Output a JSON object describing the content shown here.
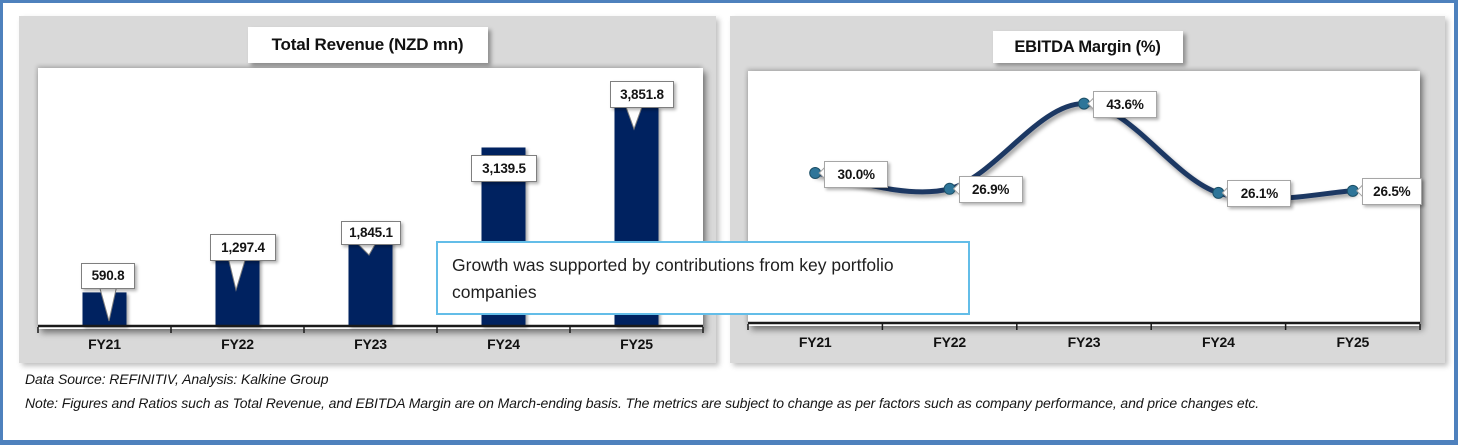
{
  "page": {
    "border_color": "#4E81BD",
    "background_color": "#FFFFFF",
    "panel_color": "#D9D9D9"
  },
  "chart_data": [
    {
      "type": "bar",
      "title": "Total Revenue (NZD mn)",
      "categories": [
        "FY21",
        "FY22",
        "FY23",
        "FY24",
        "FY25"
      ],
      "values": [
        590.8,
        1297.4,
        1845.1,
        3139.5,
        3851.8
      ],
      "data_labels": [
        "590.8",
        "1,297.4",
        "1,845.1",
        "3,139.5",
        "3,851.8"
      ],
      "xlabel": "",
      "ylabel": "",
      "ylim": [
        0,
        3900
      ],
      "grid": false,
      "legend": "none",
      "bar_color": "#002060",
      "axis_color": "#1A1A1A"
    },
    {
      "type": "line",
      "title": "EBITDA Margin (%)",
      "categories": [
        "FY21",
        "FY22",
        "FY23",
        "FY24",
        "FY25"
      ],
      "values": [
        30.0,
        26.9,
        43.6,
        26.1,
        26.5
      ],
      "data_labels": [
        "30.0%",
        "26.9%",
        "43.6%",
        "26.1%",
        "26.5%"
      ],
      "smooth": true,
      "xlabel": "",
      "ylabel": "",
      "ylim": [
        0,
        50
      ],
      "grid": false,
      "legend": "none",
      "line_color": "#1F3864",
      "marker_color": "#2E7599",
      "axis_color": "#1A1A1A"
    }
  ],
  "annotation": {
    "text": "Growth was supported by contributions from key portfolio companies",
    "border_color": "#63BDE8"
  },
  "footer": {
    "source_line": "Data Source: REFINITIV, Analysis: Kalkine Group",
    "note_line": "Note: Figures and Ratios such as Total Revenue, and EBITDA Margin are on March-ending basis. The metrics are subject to change as per factors such as company performance, and price changes etc."
  }
}
